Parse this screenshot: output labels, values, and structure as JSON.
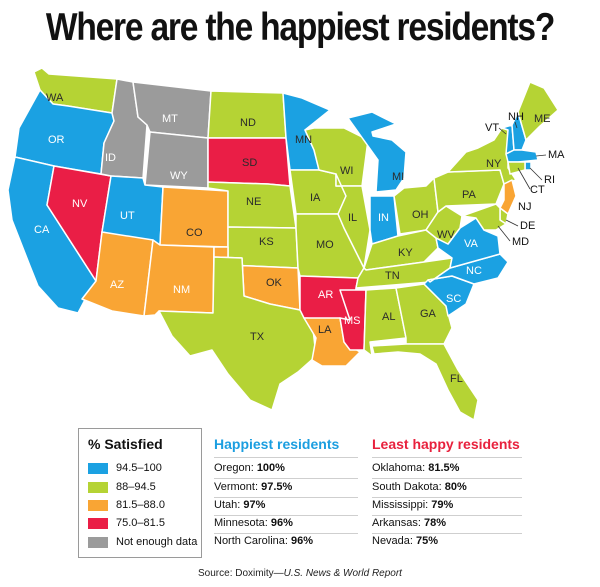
{
  "title": "Where are the happiest residents?",
  "colors": {
    "blue": "#1ba1e2",
    "green": "#b5d334",
    "orange": "#f9a534",
    "red": "#ea1e46",
    "gray": "#9b9b9b"
  },
  "legend": {
    "title": "% Satisfied",
    "items": [
      {
        "label": "94.5–100",
        "color": "#1ba1e2"
      },
      {
        "label": "88–94.5",
        "color": "#b5d334"
      },
      {
        "label": "81.5–88.0",
        "color": "#f9a534"
      },
      {
        "label": "75.0–81.5",
        "color": "#ea1e46"
      },
      {
        "label": "Not enough data",
        "color": "#9b9b9b"
      }
    ]
  },
  "happiest": {
    "title": "Happiest residents",
    "items": [
      {
        "name": "Oregon:",
        "value": "100%"
      },
      {
        "name": "Vermont:",
        "value": "97.5%"
      },
      {
        "name": "Utah:",
        "value": "97%"
      },
      {
        "name": "Minnesota:",
        "value": "96%"
      },
      {
        "name": "North Carolina:",
        "value": "96%"
      }
    ]
  },
  "least_happy": {
    "title": "Least happy residents",
    "items": [
      {
        "name": "Oklahoma:",
        "value": "81.5%"
      },
      {
        "name": "South Dakota:",
        "value": "80%"
      },
      {
        "name": "Mississippi:",
        "value": "79%"
      },
      {
        "name": "Arkansas:",
        "value": "78%"
      },
      {
        "name": "Nevada:",
        "value": "75%"
      }
    ]
  },
  "source": {
    "prefix": "Source: Doximity—",
    "italic": "U.S. News & World Report"
  },
  "states": [
    {
      "abbr": "WA",
      "category": "green"
    },
    {
      "abbr": "OR",
      "category": "blue"
    },
    {
      "abbr": "CA",
      "category": "blue"
    },
    {
      "abbr": "NV",
      "category": "red"
    },
    {
      "abbr": "ID",
      "category": "gray"
    },
    {
      "abbr": "MT",
      "category": "gray"
    },
    {
      "abbr": "WY",
      "category": "gray"
    },
    {
      "abbr": "UT",
      "category": "blue"
    },
    {
      "abbr": "AZ",
      "category": "orange"
    },
    {
      "abbr": "CO",
      "category": "orange"
    },
    {
      "abbr": "NM",
      "category": "orange"
    },
    {
      "abbr": "ND",
      "category": "green"
    },
    {
      "abbr": "SD",
      "category": "red"
    },
    {
      "abbr": "NE",
      "category": "green"
    },
    {
      "abbr": "KS",
      "category": "green"
    },
    {
      "abbr": "OK",
      "category": "orange"
    },
    {
      "abbr": "TX",
      "category": "green"
    },
    {
      "abbr": "MN",
      "category": "blue"
    },
    {
      "abbr": "IA",
      "category": "green"
    },
    {
      "abbr": "MO",
      "category": "green"
    },
    {
      "abbr": "AR",
      "category": "red"
    },
    {
      "abbr": "LA",
      "category": "orange"
    },
    {
      "abbr": "WI",
      "category": "green"
    },
    {
      "abbr": "IL",
      "category": "green"
    },
    {
      "abbr": "MI",
      "category": "blue"
    },
    {
      "abbr": "IN",
      "category": "blue"
    },
    {
      "abbr": "OH",
      "category": "green"
    },
    {
      "abbr": "KY",
      "category": "green"
    },
    {
      "abbr": "TN",
      "category": "green"
    },
    {
      "abbr": "MS",
      "category": "red"
    },
    {
      "abbr": "AL",
      "category": "green"
    },
    {
      "abbr": "GA",
      "category": "green"
    },
    {
      "abbr": "FL",
      "category": "green"
    },
    {
      "abbr": "SC",
      "category": "blue"
    },
    {
      "abbr": "NC",
      "category": "blue"
    },
    {
      "abbr": "VA",
      "category": "blue"
    },
    {
      "abbr": "WV",
      "category": "green"
    },
    {
      "abbr": "PA",
      "category": "green"
    },
    {
      "abbr": "NY",
      "category": "green"
    },
    {
      "abbr": "VT",
      "category": "blue"
    },
    {
      "abbr": "NH",
      "category": "blue"
    },
    {
      "abbr": "ME",
      "category": "green"
    },
    {
      "abbr": "MA",
      "category": "blue"
    },
    {
      "abbr": "RI",
      "category": "blue"
    },
    {
      "abbr": "CT",
      "category": "green"
    },
    {
      "abbr": "NJ",
      "category": "orange"
    },
    {
      "abbr": "DE",
      "category": "green"
    },
    {
      "abbr": "MD",
      "category": "green"
    }
  ]
}
